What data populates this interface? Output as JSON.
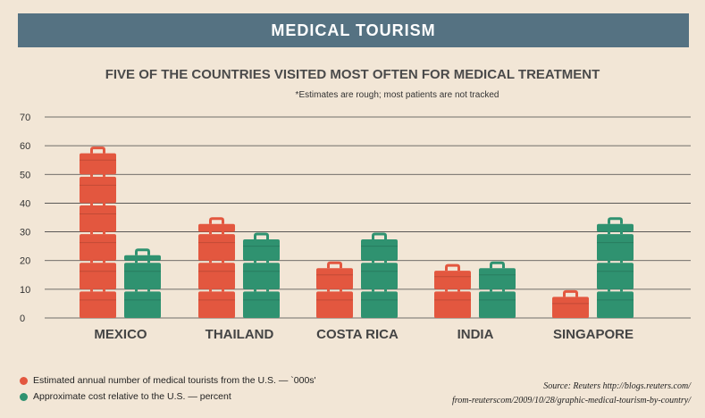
{
  "banner_title": "MEDICAL TOURISM",
  "chart_data": {
    "type": "bar",
    "title": "FIVE OF THE COUNTRIES VISITED MOST OFTEN FOR MEDICAL TREATMENT",
    "subtitle": "*Estimates are rough; most patients are not tracked",
    "categories": [
      "MEXICO",
      "THAILAND",
      "COSTA RICA",
      "INDIA",
      "SINGAPORE"
    ],
    "series": [
      {
        "name": "Estimated annual number of medical tourists from the U.S. — `000s'",
        "color": "#e3573f",
        "values": [
          58,
          33,
          18,
          17,
          8
        ]
      },
      {
        "name": "Approximate cost relative to the U.S. — percent",
        "color": "#2f9270",
        "values": [
          22,
          28,
          28,
          18,
          33
        ]
      }
    ],
    "ylim": [
      0,
      70
    ],
    "yticks": [
      0,
      10,
      20,
      30,
      40,
      50,
      60,
      70
    ],
    "grid": true,
    "legend": "bottom-left",
    "marker": "briefcase-icon"
  },
  "source_line1": "Source: Reuters http://blogs.reuters.com/",
  "source_line2": "from-reuterscom/2009/10/28/graphic-medical-tourism-by-country/"
}
